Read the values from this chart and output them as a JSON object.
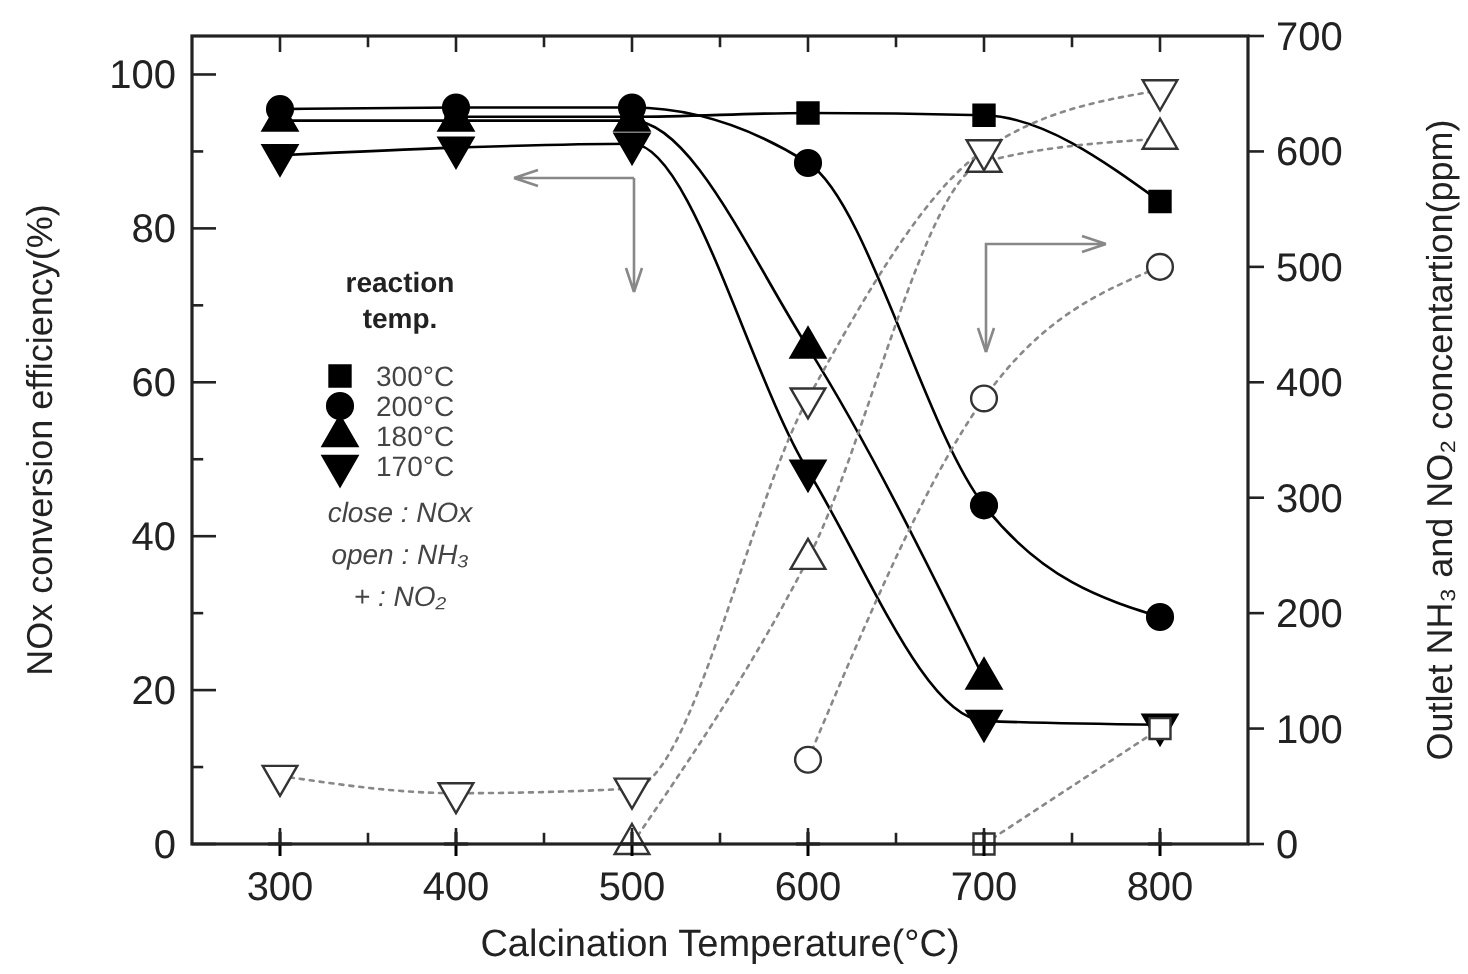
{
  "chart_data": {
    "type": "line",
    "xlabel": "Calcination Temperature(°C)",
    "ylabel": "NOx conversion efficiency(%)",
    "y2label": "Outlet NH₃ and NO₂ concentartion(ppm)",
    "legend_title": "reaction temp.",
    "legend": "center left",
    "x": [
      300,
      400,
      500,
      600,
      700,
      800
    ],
    "xlim": [
      250,
      850
    ],
    "xticks": [
      300,
      {
        "value": 350,
        "label": null
      },
      400,
      {
        "value": 450,
        "label": null
      },
      500,
      {
        "value": 550,
        "label": null
      },
      600,
      {
        "value": 650,
        "label": null
      },
      700,
      {
        "value": 750,
        "label": null
      },
      800
    ],
    "ylim": [
      0,
      105
    ],
    "yticks": [
      0,
      {
        "value": 10,
        "label": null
      },
      20,
      {
        "value": 30,
        "label": null
      },
      40,
      {
        "value": 50,
        "label": null
      },
      60,
      {
        "value": 70,
        "label": null
      },
      80,
      {
        "value": 90,
        "label": null
      },
      100
    ],
    "y2lim": [
      0,
      700
    ],
    "y2ticks": [
      0,
      100,
      200,
      300,
      400,
      500,
      600,
      700
    ],
    "series": [
      {
        "name": "300°C",
        "marker": "square",
        "line_style": "solid",
        "color": "#000000",
        "values": [
          null,
          94.5,
          94.5,
          95,
          94.7,
          83.5
        ]
      },
      {
        "name": "200°C",
        "marker": "circle",
        "line_style": "solid",
        "color": "#000000",
        "values": [
          95.5,
          95.7,
          95.7,
          88.5,
          44,
          29.5
        ]
      },
      {
        "name": "180°C",
        "marker": "triangle",
        "line_style": "solid",
        "color": "#000000",
        "values": [
          94,
          94,
          94,
          64.5,
          21.5,
          null
        ]
      },
      {
        "name": "170°C",
        "marker": "triangle-down",
        "line_style": "solid",
        "color": "#000000",
        "values": [
          89.5,
          90.5,
          91,
          48.5,
          16,
          15.5
        ]
      },
      {
        "type": "line",
        "axis": "y2",
        "marker": "square",
        "line_style": "dotted",
        "color": "#333333",
        "values": [
          null,
          null,
          null,
          null,
          0,
          100
        ]
      },
      {
        "type": "line",
        "axis": "y2",
        "marker": "circle",
        "line_style": "dotted",
        "color": "#333333",
        "values": [
          null,
          null,
          null,
          73,
          386,
          500
        ]
      },
      {
        "type": "line",
        "axis": "y2",
        "marker": "triangle",
        "line_style": "dotted",
        "color": "#333333",
        "values": [
          null,
          null,
          0,
          247,
          591,
          611
        ]
      },
      {
        "type": "line",
        "axis": "y2",
        "marker": "triangle-down",
        "line_style": "dotted",
        "color": "#333333",
        "values": [
          59,
          44,
          48,
          386,
          601,
          653
        ]
      },
      {
        "type": "scatter",
        "axis": "y2",
        "marker": "cross",
        "color": "#000000",
        "values": [
          0,
          0,
          0,
          0,
          0,
          0
        ]
      }
    ],
    "annotations": [
      "close : NOx",
      "open : NH₃",
      "+ : NO₂"
    ]
  }
}
